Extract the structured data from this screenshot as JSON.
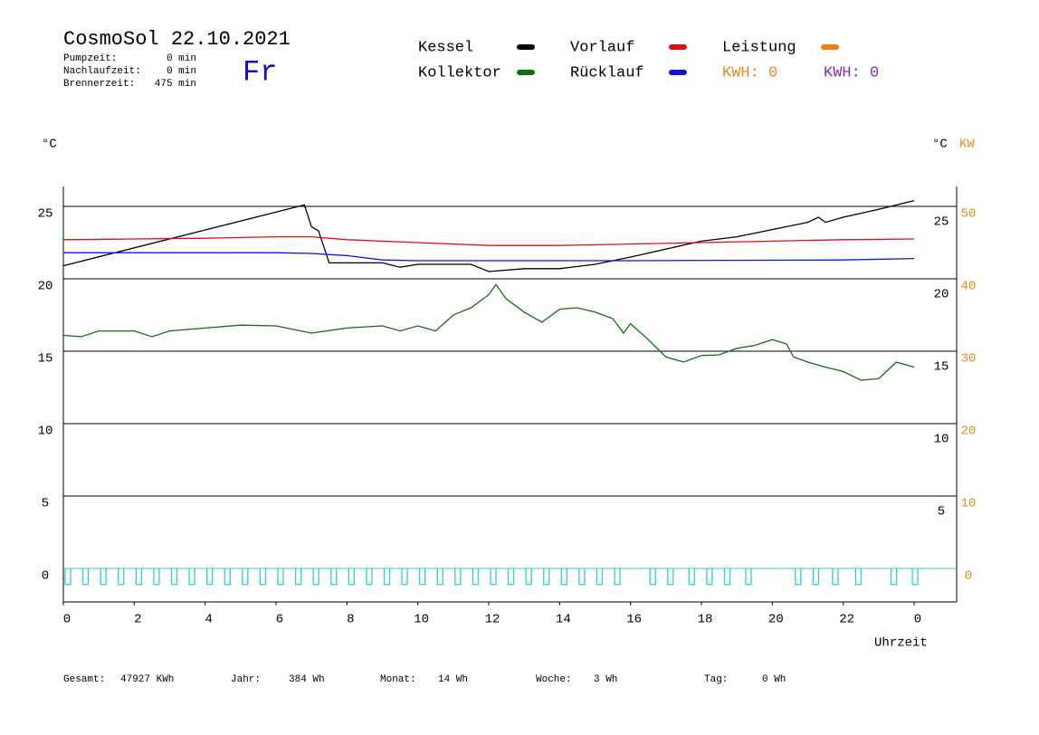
{
  "header": {
    "title": "CosmoSol 22.10.2021",
    "day": "Fr",
    "stats": [
      {
        "label": "Pumpzeit:",
        "value": "0 min"
      },
      {
        "label": "Nachlaufzeit:",
        "value": "0 min"
      },
      {
        "label": "Brennerzeit:",
        "value": "475 min"
      }
    ]
  },
  "legend": {
    "extra": [
      {
        "label": "KWH: 0",
        "color": "#e08a1e"
      },
      {
        "label": "KWH: 0",
        "color": "#8030a0"
      }
    ]
  },
  "footer": [
    {
      "label": "Gesamt:",
      "value": "47927 KWh"
    },
    {
      "label": "Jahr:",
      "value": "384 Wh"
    },
    {
      "label": "Monat:",
      "value": "14 Wh"
    },
    {
      "label": "Woche:",
      "value": "3 Wh"
    },
    {
      "label": "Tag:",
      "value": "0 Wh"
    }
  ],
  "chart_data": {
    "type": "line",
    "ylabel": "°C",
    "y2label": "°C",
    "kwlabel": "KW",
    "xlabel": "Uhrzeit",
    "xlim": [
      0,
      25.2
    ],
    "xticks": [
      0,
      2,
      4,
      6,
      8,
      10,
      12,
      14,
      16,
      18,
      20,
      22,
      {
        "value": 24,
        "label": "0"
      }
    ],
    "ylim": [
      -2.3,
      26.4
    ],
    "yticks": [
      0,
      5,
      10,
      15,
      20,
      25
    ],
    "y2ticks": [
      5,
      10,
      15,
      20,
      25
    ],
    "kwlim": [
      -4.6,
      52.8
    ],
    "kwticks": [
      0,
      10,
      20,
      30,
      40,
      50
    ],
    "grid": true,
    "series": [
      {
        "name": "Kessel",
        "color": "#000000",
        "x": [
          0,
          6.8,
          7.0,
          7.2,
          7.5,
          8,
          9,
          9.5,
          10,
          11.5,
          12,
          13,
          14,
          15,
          16,
          18,
          19,
          20,
          21,
          21.3,
          21.5,
          22,
          23,
          24
        ],
        "values": [
          20.9,
          25.1,
          23.6,
          23.3,
          21.1,
          21.1,
          21.1,
          20.8,
          21.0,
          21.0,
          20.5,
          20.7,
          20.7,
          21.0,
          21.5,
          22.6,
          22.9,
          23.4,
          23.9,
          24.25,
          23.9,
          24.25,
          24.8,
          25.4
        ]
      },
      {
        "name": "Kollektor",
        "color": "#107010",
        "x": [
          0,
          0.5,
          1,
          2,
          2.5,
          3,
          4,
          5,
          6,
          7,
          8,
          9,
          9.5,
          10,
          10.5,
          11,
          11.5,
          12,
          12.2,
          12.5,
          13,
          13.5,
          14,
          14.5,
          15,
          15.5,
          15.8,
          16,
          16.5,
          17,
          17.5,
          18,
          18.5,
          19,
          19.5,
          20,
          20.4,
          20.6,
          21,
          21.5,
          22,
          22.5,
          23,
          23.5,
          24
        ],
        "values": [
          16.1,
          16.0,
          16.4,
          16.4,
          16.0,
          16.4,
          16.6,
          16.8,
          16.75,
          16.25,
          16.6,
          16.75,
          16.4,
          16.75,
          16.4,
          17.5,
          18.0,
          18.9,
          19.6,
          18.6,
          17.7,
          17.0,
          17.9,
          18.0,
          17.7,
          17.25,
          16.25,
          16.9,
          15.8,
          14.6,
          14.25,
          14.7,
          14.75,
          15.2,
          15.4,
          15.8,
          15.5,
          14.6,
          14.25,
          13.9,
          13.6,
          13.0,
          13.1,
          14.25,
          13.9
        ]
      },
      {
        "name": "Vorlauf",
        "color": "#e01010",
        "x": [
          0,
          2,
          4,
          6,
          7,
          8,
          10,
          12,
          14,
          16,
          18,
          20,
          22,
          24
        ],
        "values": [
          22.7,
          22.75,
          22.8,
          22.9,
          22.9,
          22.7,
          22.5,
          22.3,
          22.3,
          22.4,
          22.5,
          22.6,
          22.7,
          22.75
        ]
      },
      {
        "name": "Rücklauf",
        "color": "#1010e0",
        "x": [
          0,
          6,
          7,
          8,
          9,
          10,
          16,
          22,
          24
        ],
        "values": [
          21.8,
          21.8,
          21.75,
          21.6,
          21.3,
          21.25,
          21.25,
          21.3,
          21.4
        ]
      },
      {
        "name": "Leistung",
        "color": "#f08010",
        "x": [],
        "values": []
      }
    ],
    "pulse_color": "#30d0d0",
    "pulse_level": -1.1,
    "pulses": [
      0,
      0.5,
      1,
      1.5,
      2,
      2.5,
      3,
      3.5,
      4,
      4.5,
      5,
      5.5,
      6,
      6.5,
      7,
      7.5,
      8,
      8.5,
      9,
      9.5,
      10,
      10.5,
      11,
      11.5,
      12,
      12.5,
      13,
      13.5,
      14,
      14.5,
      15,
      15.5,
      16.5,
      17.0,
      17.6,
      18.1,
      18.6,
      19.2,
      20.6,
      21.1,
      21.65,
      22.3,
      23.3,
      23.9
    ]
  }
}
